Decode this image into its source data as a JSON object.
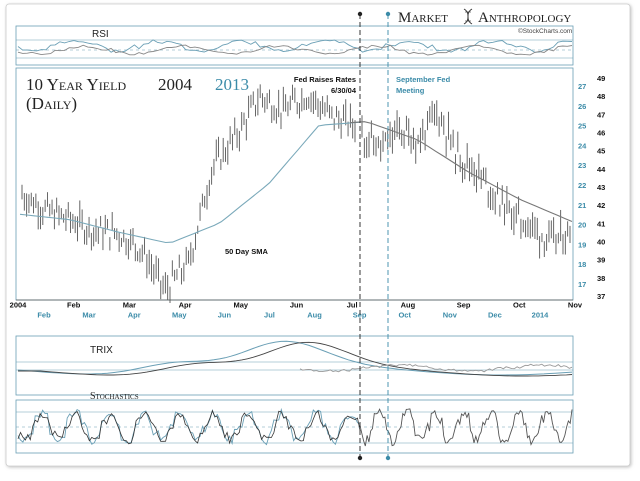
{
  "header": {
    "brand_left": "Market",
    "brand_right": "Anthropology",
    "source": "©StockCharts.com"
  },
  "chart_data": {
    "type": "line",
    "title_line1": "10 Year Yield",
    "title_year_a": "2004",
    "title_year_b": "2013",
    "title_line2": "(Daily)",
    "colors": {
      "series_2004": "#555555",
      "series_2013": "#3b8ba8",
      "sma": "#7aa9ba",
      "frame": "#6a9fb5"
    },
    "x_axis_2004": [
      "2004",
      "Feb",
      "Mar",
      "Apr",
      "May",
      "Jun",
      "Jul",
      "Aug",
      "Sep",
      "Oct",
      "Nov"
    ],
    "x_axis_2013": [
      "Feb",
      "Mar",
      "Apr",
      "May",
      "Jun",
      "Jul",
      "Aug",
      "Sep",
      "Oct",
      "Nov",
      "Dec",
      "2014"
    ],
    "y_axis_2004": {
      "ticks": [
        37,
        38,
        39,
        40,
        41,
        42,
        43,
        44,
        45,
        46,
        47,
        48,
        49
      ],
      "ylim": [
        37,
        49
      ]
    },
    "y_axis_2013": {
      "ticks": [
        17,
        18,
        19,
        20,
        21,
        22,
        23,
        24,
        25,
        26,
        27
      ],
      "ylim": [
        17,
        27
      ]
    },
    "series": [
      {
        "name": "2004",
        "x": [
          "Jan",
          "Jan",
          "Feb",
          "Feb",
          "Mar",
          "Mar",
          "Mar",
          "Apr",
          "Apr",
          "May",
          "May",
          "Jun",
          "Jun",
          "Jul",
          "Jul"
        ],
        "values": [
          42.6,
          41.7,
          41.2,
          40.6,
          40.5,
          39.6,
          37.3,
          38.8,
          44.1,
          45.8,
          48.0,
          47.2,
          48.1,
          46.9,
          46.4
        ]
      },
      {
        "name": "2013",
        "x": [
          "Jul",
          "Jul",
          "Aug",
          "Aug",
          "Aug",
          "Sep",
          "Sep",
          "Oct",
          "Oct",
          "Nov",
          "Dec",
          "Dec"
        ],
        "values": [
          24.6,
          23.8,
          24.8,
          24.2,
          25.7,
          23.6,
          22.8,
          21.5,
          20.5,
          19.9,
          19.1,
          19.6
        ]
      },
      {
        "name": "50 Day SMA",
        "x": [
          "Jan",
          "Feb",
          "Mar",
          "Apr",
          "May",
          "Jun",
          "Jul",
          "Aug",
          "Sep",
          "Oct",
          "Nov",
          "Dec"
        ],
        "values": [
          41.5,
          41.2,
          40.5,
          39.9,
          41.0,
          43.2,
          46.4,
          46.6,
          45.6,
          43.8,
          42.3,
          41.1
        ]
      }
    ],
    "annotations": {
      "fed_raises_line1": "Fed Raises Rates",
      "fed_raises_line2": "6/30/04",
      "sept_fed_line1": "September Fed",
      "sept_fed_line2": "Meeting",
      "sma_label": "50 Day SMA"
    },
    "indicators": {
      "rsi_label": "RSI",
      "trix_label": "TRIX",
      "stochastics_label": "Stochastics"
    }
  }
}
